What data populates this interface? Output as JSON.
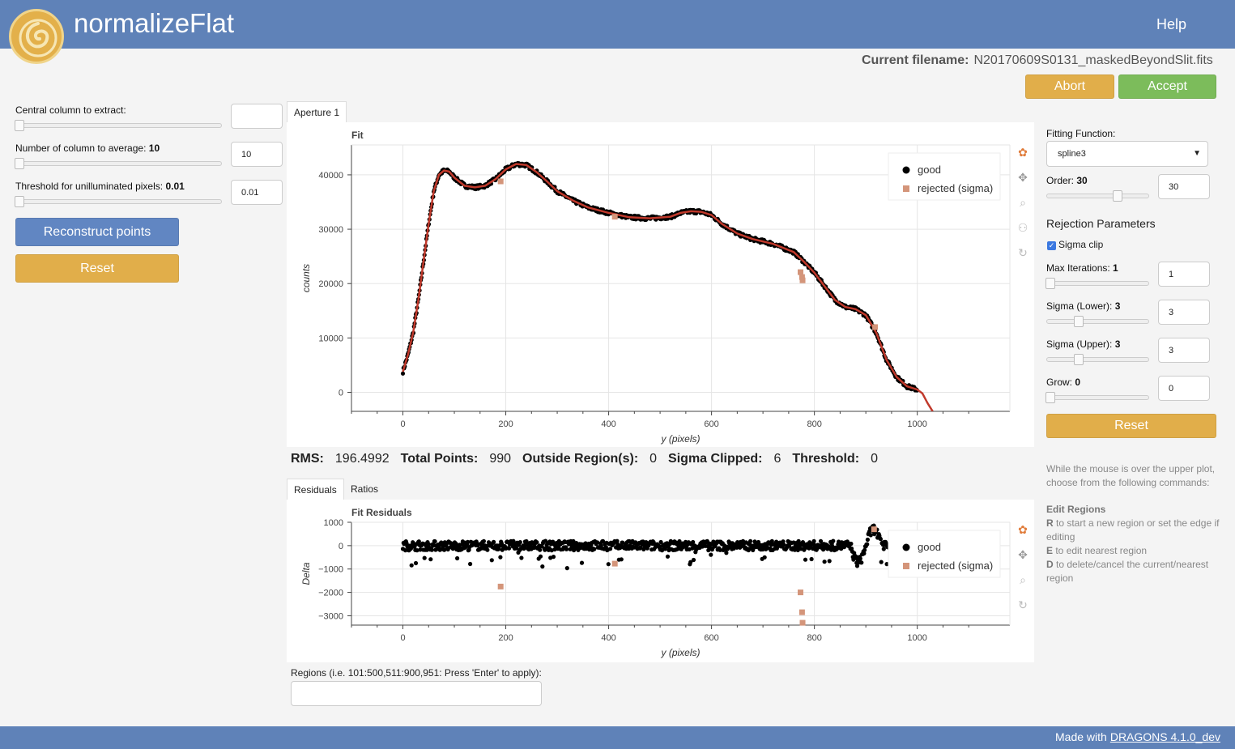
{
  "app": {
    "title": "normalizeFlat",
    "help": "Help"
  },
  "file": {
    "label": "Current filename:",
    "name": "N20170609S0131_maskedBeyondSlit.fits"
  },
  "buttons": {
    "abort": "Abort",
    "accept": "Accept",
    "reconstruct": "Reconstruct points",
    "reset": "Reset",
    "reset_fit": "Reset"
  },
  "left_controls": {
    "central_column": {
      "label": "Central column to extract:",
      "value": "",
      "level": 0
    },
    "num_columns": {
      "label": "Number of column to average:",
      "bold": "10",
      "value": "10",
      "level": 0
    },
    "threshold": {
      "label": "Threshold for unilluminated pixels:",
      "bold": "0.01",
      "value": "0.01",
      "level": 0
    }
  },
  "tabs": {
    "aperture": "Aperture 1",
    "residuals": "Residuals",
    "ratios": "Ratios"
  },
  "stats": {
    "rms_label": "RMS:",
    "rms": "196.4992",
    "total_label": "Total Points:",
    "total": "990",
    "outside_label": "Outside Region(s):",
    "outside": "0",
    "clipped_label": "Sigma Clipped:",
    "clipped": "6",
    "threshold_label": "Threshold:",
    "threshold": "0"
  },
  "regions": {
    "label": "Regions (i.e. 101:500,511:900,951: Press 'Enter' to apply):",
    "value": ""
  },
  "fit_params": {
    "function_label": "Fitting Function:",
    "function": "spline3",
    "order": {
      "label": "Order:",
      "bold": "30",
      "value": "30",
      "level": 0.72
    },
    "rejection_title": "Rejection Parameters",
    "sigma_clip": "Sigma clip",
    "max_iter": {
      "label": "Max Iterations:",
      "bold": "1",
      "value": "1",
      "level": 0
    },
    "sigma_lower": {
      "label": "Sigma (Lower):",
      "bold": "3",
      "value": "3",
      "level": 0.3
    },
    "sigma_upper": {
      "label": "Sigma (Upper):",
      "bold": "3",
      "value": "3",
      "level": 0.3
    },
    "grow": {
      "label": "Grow:",
      "bold": "0",
      "value": "0",
      "level": 0
    }
  },
  "help_text": {
    "intro": "While the mouse is over the upper plot, choose from the following commands:",
    "section": "Edit Regions",
    "r_key": "R",
    "r_text": " to start a new region or set the edge if editing",
    "e_key": "E",
    "e_text": " to edit nearest region",
    "d_key": "D",
    "d_text": " to delete/cancel the current/nearest region"
  },
  "footer": {
    "text": "Made with",
    "link": "DRAGONS 4.1.0_dev"
  },
  "colors": {
    "good": "#000000",
    "rejected": "#d4957a",
    "fit": "#c0392b"
  },
  "chart_data": [
    {
      "type": "scatter",
      "title": "Fit",
      "xlabel": "y (pixels)",
      "ylabel": "counts",
      "xlim": [
        -100,
        1180
      ],
      "ylim": [
        -3500,
        45500
      ],
      "xticks": [
        0,
        200,
        400,
        600,
        800,
        1000
      ],
      "yticks": [
        0,
        10000,
        20000,
        30000,
        40000
      ],
      "legend": [
        "good",
        "rejected (sigma)"
      ],
      "legend_position": "top-right",
      "grid": true,
      "curve": [
        [
          0,
          3800
        ],
        [
          10,
          7000
        ],
        [
          20,
          11000
        ],
        [
          30,
          17000
        ],
        [
          40,
          24000
        ],
        [
          50,
          31000
        ],
        [
          60,
          37000
        ],
        [
          70,
          40000
        ],
        [
          80,
          40800
        ],
        [
          90,
          40600
        ],
        [
          100,
          39500
        ],
        [
          120,
          38000
        ],
        [
          140,
          37700
        ],
        [
          160,
          38000
        ],
        [
          180,
          39200
        ],
        [
          200,
          41000
        ],
        [
          220,
          42000
        ],
        [
          240,
          41800
        ],
        [
          260,
          40500
        ],
        [
          280,
          38800
        ],
        [
          300,
          37000
        ],
        [
          330,
          35300
        ],
        [
          360,
          34000
        ],
        [
          400,
          33000
        ],
        [
          440,
          32200
        ],
        [
          480,
          32000
        ],
        [
          520,
          32300
        ],
        [
          540,
          33000
        ],
        [
          560,
          33300
        ],
        [
          580,
          33200
        ],
        [
          600,
          32600
        ],
        [
          620,
          31000
        ],
        [
          650,
          29200
        ],
        [
          680,
          28200
        ],
        [
          720,
          27300
        ],
        [
          760,
          25800
        ],
        [
          780,
          24000
        ],
        [
          800,
          22000
        ],
        [
          820,
          19500
        ],
        [
          840,
          17000
        ],
        [
          860,
          15700
        ],
        [
          880,
          15300
        ],
        [
          900,
          14200
        ],
        [
          920,
          11000
        ],
        [
          940,
          6000
        ],
        [
          960,
          2800
        ],
        [
          980,
          1100
        ],
        [
          1000,
          500
        ],
        [
          1010,
          -200
        ],
        [
          1020,
          -2000
        ],
        [
          1030,
          -3500
        ]
      ],
      "rejected": [
        [
          190,
          38800
        ],
        [
          412,
          32300
        ],
        [
          773,
          22100
        ],
        [
          776,
          21200
        ],
        [
          777,
          20600
        ],
        [
          918,
          12000
        ]
      ]
    },
    {
      "type": "scatter",
      "title": "Fit Residuals",
      "xlabel": "y (pixels)",
      "ylabel": "Delta",
      "xlim": [
        -100,
        1180
      ],
      "ylim": [
        -3400,
        1000
      ],
      "xticks": [
        0,
        200,
        400,
        600,
        800,
        1000
      ],
      "yticks": [
        1000,
        0,
        -1000,
        -2000,
        -3000
      ],
      "legend": [
        "good",
        "rejected (sigma)"
      ],
      "legend_position": "top-right",
      "grid": true,
      "rejected": [
        [
          190,
          -1750
        ],
        [
          412,
          -770
        ],
        [
          773,
          -2000
        ],
        [
          776,
          -2850
        ],
        [
          777,
          -3300
        ],
        [
          916,
          700
        ]
      ]
    }
  ]
}
